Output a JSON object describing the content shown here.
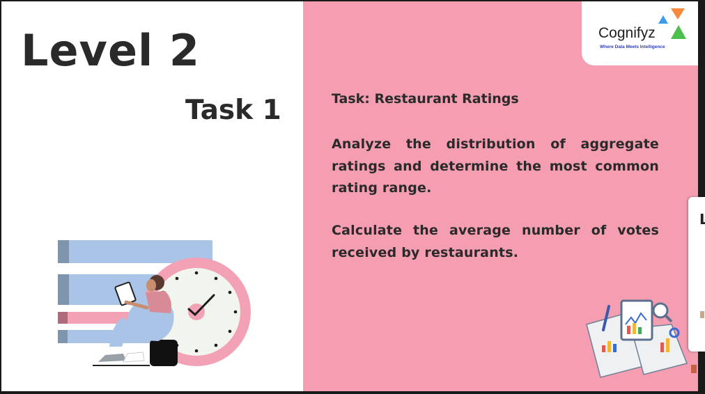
{
  "slide": {
    "level_title": "Level 2",
    "task_number": "Task 1",
    "task_heading": "Task: Restaurant Ratings",
    "paragraphs": [
      "Analyze the distribution of aggregate ratings and determine the most common rating range.",
      "Calculate the average number of votes received by restaurants."
    ]
  },
  "logo": {
    "name": "Cognifyz",
    "tagline": "Where Data Meets Intelligence",
    "colors": {
      "orange": "#f5893a",
      "blue": "#3e9be8",
      "green": "#4cbf4c"
    }
  },
  "side_window": {
    "visible_letter": "L"
  },
  "colors": {
    "left_background": "#ffffff",
    "right_background": "#f59db1",
    "title_text": "#2a2a2a"
  },
  "icons": {
    "illustration": "person-with-tablet-and-clock-illustration",
    "documents": "charts-documents-magnifier-illustration"
  }
}
